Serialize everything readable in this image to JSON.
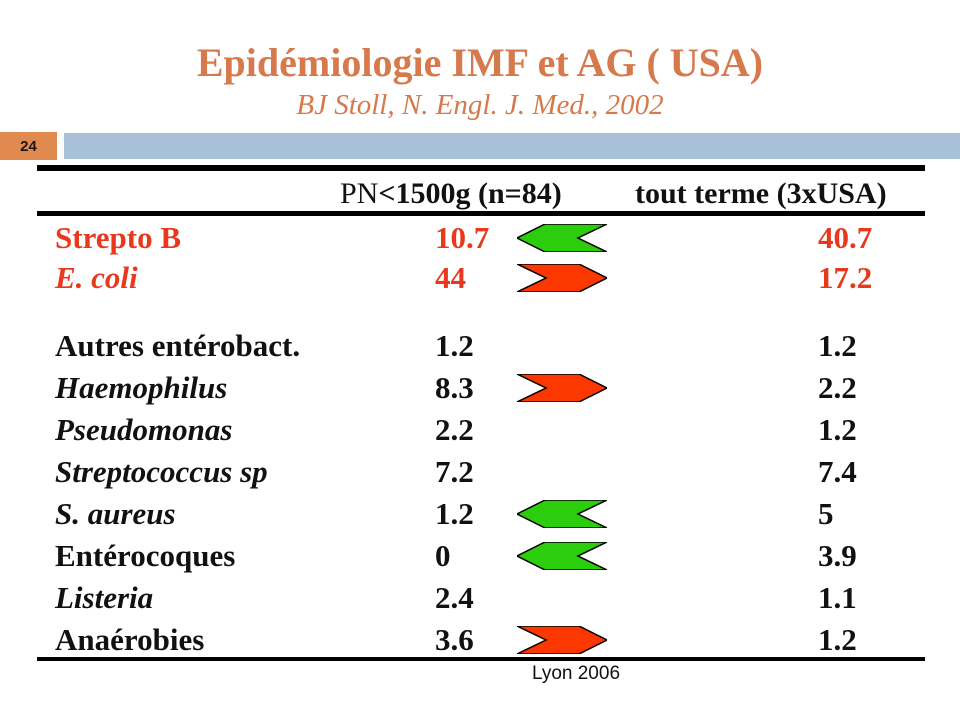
{
  "slide": {
    "number": "24",
    "title": "Epidémiologie IMF et AG ( USA)",
    "subtitle": "BJ Stoll, N. Engl. J. Med., 2002",
    "footer": "Lyon 2006"
  },
  "table": {
    "columns": {
      "col1_prefix": "PN",
      "col1_rest": "<1500g (n=84)",
      "col2": "tout terme (3xUSA)"
    },
    "rows": [
      {
        "label": "Strepto B",
        "italic": false,
        "highlight": true,
        "pn": "10.7",
        "arrow": "left",
        "term": "40.7"
      },
      {
        "label": "E. coli",
        "italic": true,
        "highlight": true,
        "pn": "44",
        "arrow": "right",
        "term": "17.2"
      },
      {
        "label": "Autres entérobact.",
        "italic": false,
        "highlight": false,
        "pn": "1.2",
        "arrow": null,
        "term": "1.2"
      },
      {
        "label": "Haemophilus",
        "italic": true,
        "highlight": false,
        "pn": "8.3",
        "arrow": "right",
        "term": "2.2"
      },
      {
        "label": "Pseudomonas",
        "italic": true,
        "highlight": false,
        "pn": "2.2",
        "arrow": null,
        "term": "1.2"
      },
      {
        "label": "Streptococcus sp",
        "italic": true,
        "highlight": false,
        "pn": "7.2",
        "arrow": null,
        "term": "7.4"
      },
      {
        "label": "S. aureus",
        "italic": true,
        "highlight": false,
        "pn": "1.2",
        "arrow": "left",
        "term": "5"
      },
      {
        "label": "Entérocoques",
        "italic": false,
        "highlight": false,
        "pn": "0",
        "arrow": "left",
        "term": "3.9"
      },
      {
        "label": "Listeria",
        "italic": true,
        "highlight": false,
        "pn": "2.4",
        "arrow": null,
        "term": "1.1"
      },
      {
        "label": "Anaérobies",
        "italic": false,
        "highlight": false,
        "pn": "3.6",
        "arrow": "right",
        "term": "1.2"
      }
    ]
  },
  "icons": {
    "left_arrow": "green-left-chevron-arrow-icon",
    "right_arrow": "red-right-chevron-arrow-icon"
  },
  "colors": {
    "accent_orange": "#D6794C",
    "badge_orange": "#E18A50",
    "bar_blue": "#A8C0D8",
    "highlight_red": "#E8391D",
    "arrow_green": "#2BCD0C",
    "arrow_red": "#FC3800"
  }
}
